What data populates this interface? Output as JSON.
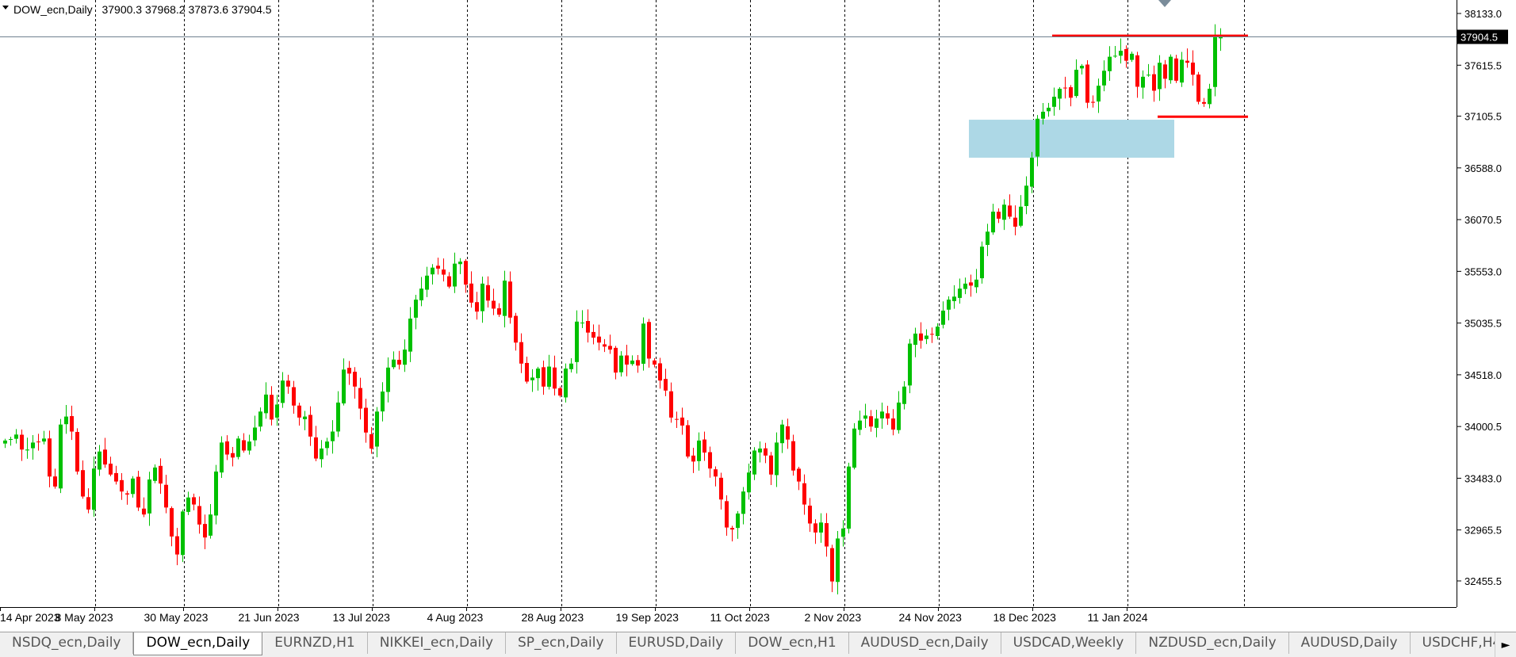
{
  "header": {
    "symbol": "DOW_ecn,Daily",
    "ohlc": "37900.3 37968.2 37873.6 37904.5"
  },
  "price_label": "37904.5",
  "chart_data": {
    "type": "candlestick",
    "symbol": "DOW_ecn",
    "timeframe": "Daily",
    "y_ticks": [
      38133.0,
      37615.5,
      37105.5,
      36588.0,
      36070.5,
      35553.0,
      35035.5,
      34518.0,
      34000.5,
      33483.0,
      32965.5,
      32455.5
    ],
    "x_labels": [
      "14 Apr 2023",
      "8 May 2023",
      "30 May 2023",
      "21 Jun 2023",
      "13 Jul 2023",
      "4 Aug 2023",
      "28 Aug 2023",
      "19 Sep 2023",
      "11 Oct 2023",
      "2 Nov 2023",
      "24 Nov 2023",
      "18 Dec 2023",
      "11 Jan 2024"
    ],
    "current_price": 37904.5,
    "colors": {
      "up": "#00c000",
      "down": "#ff0000",
      "zone": "#add8e6",
      "level": "#ff0000",
      "grid": "#000000",
      "price_line": "#708090"
    },
    "levels": [
      {
        "price": 37910,
        "from_bar": 189,
        "to_bar": 224
      },
      {
        "price": 37100,
        "from_bar": 208,
        "to_bar": 224
      }
    ],
    "zone": {
      "top": 37070,
      "bottom": 36690,
      "from_bar": 174,
      "to_bar": 211
    },
    "closes": [
      33860,
      33875,
      33920,
      33770,
      33770,
      33840,
      33850,
      33880,
      33500,
      33400,
      34020,
      34100,
      33950,
      33550,
      33300,
      33170,
      33580,
      33750,
      33620,
      33520,
      33450,
      33350,
      33320,
      33480,
      33190,
      33120,
      33470,
      33590,
      33430,
      33190,
      32900,
      32720,
      33150,
      33290,
      33220,
      33020,
      32890,
      33120,
      33550,
      33840,
      33720,
      33690,
      33880,
      33760,
      33850,
      33990,
      34150,
      34320,
      34070,
      34220,
      34460,
      34400,
      34210,
      34090,
      34100,
      33900,
      33680,
      33780,
      33850,
      33950,
      34240,
      34570,
      34530,
      34400,
      34180,
      33940,
      33780,
      34150,
      34350,
      34590,
      34670,
      34620,
      34770,
      35080,
      35270,
      35380,
      35510,
      35590,
      35580,
      35520,
      35400,
      35630,
      35650,
      35420,
      35240,
      35150,
      35430,
      35260,
      35180,
      35120,
      35460,
      35090,
      34840,
      34630,
      34450,
      34490,
      34580,
      34400,
      34600,
      34380,
      34310,
      34580,
      34630,
      35050,
      35040,
      34940,
      34890,
      34840,
      34800,
      34770,
      34540,
      34710,
      34620,
      34660,
      34610,
      35030,
      34680,
      34620,
      34460,
      34360,
      34090,
      34070,
      34010,
      33700,
      33650,
      33860,
      33740,
      33580,
      33500,
      33270,
      32990,
      32970,
      33130,
      33350,
      33540,
      33760,
      33780,
      33710,
      33520,
      33840,
      34020,
      33870,
      33560,
      33450,
      33220,
      33030,
      32940,
      33040,
      32800,
      32450,
      32880,
      32980,
      33600,
      33980,
      34060,
      34110,
      34000,
      34080,
      34150,
      34080,
      33970,
      34240,
      34400,
      34830,
      34930,
      34860,
      34910,
      34920,
      35000,
      35160,
      35270,
      35300,
      35380,
      35430,
      35410,
      35470,
      35800,
      35950,
      36150,
      36080,
      36220,
      36100,
      36000,
      36200,
      36410,
      36690,
      37080,
      37150,
      37190,
      37300,
      37380,
      37390,
      37290,
      37570,
      37610,
      37240,
      37240,
      37410,
      37560,
      37700,
      37710,
      37760,
      37660,
      37730,
      37400,
      37500,
      37520,
      37360,
      37640,
      37480,
      37700,
      37460,
      37670,
      37640,
      37520,
      37250,
      37230,
      37380,
      37900,
      37904.5
    ]
  }
}
